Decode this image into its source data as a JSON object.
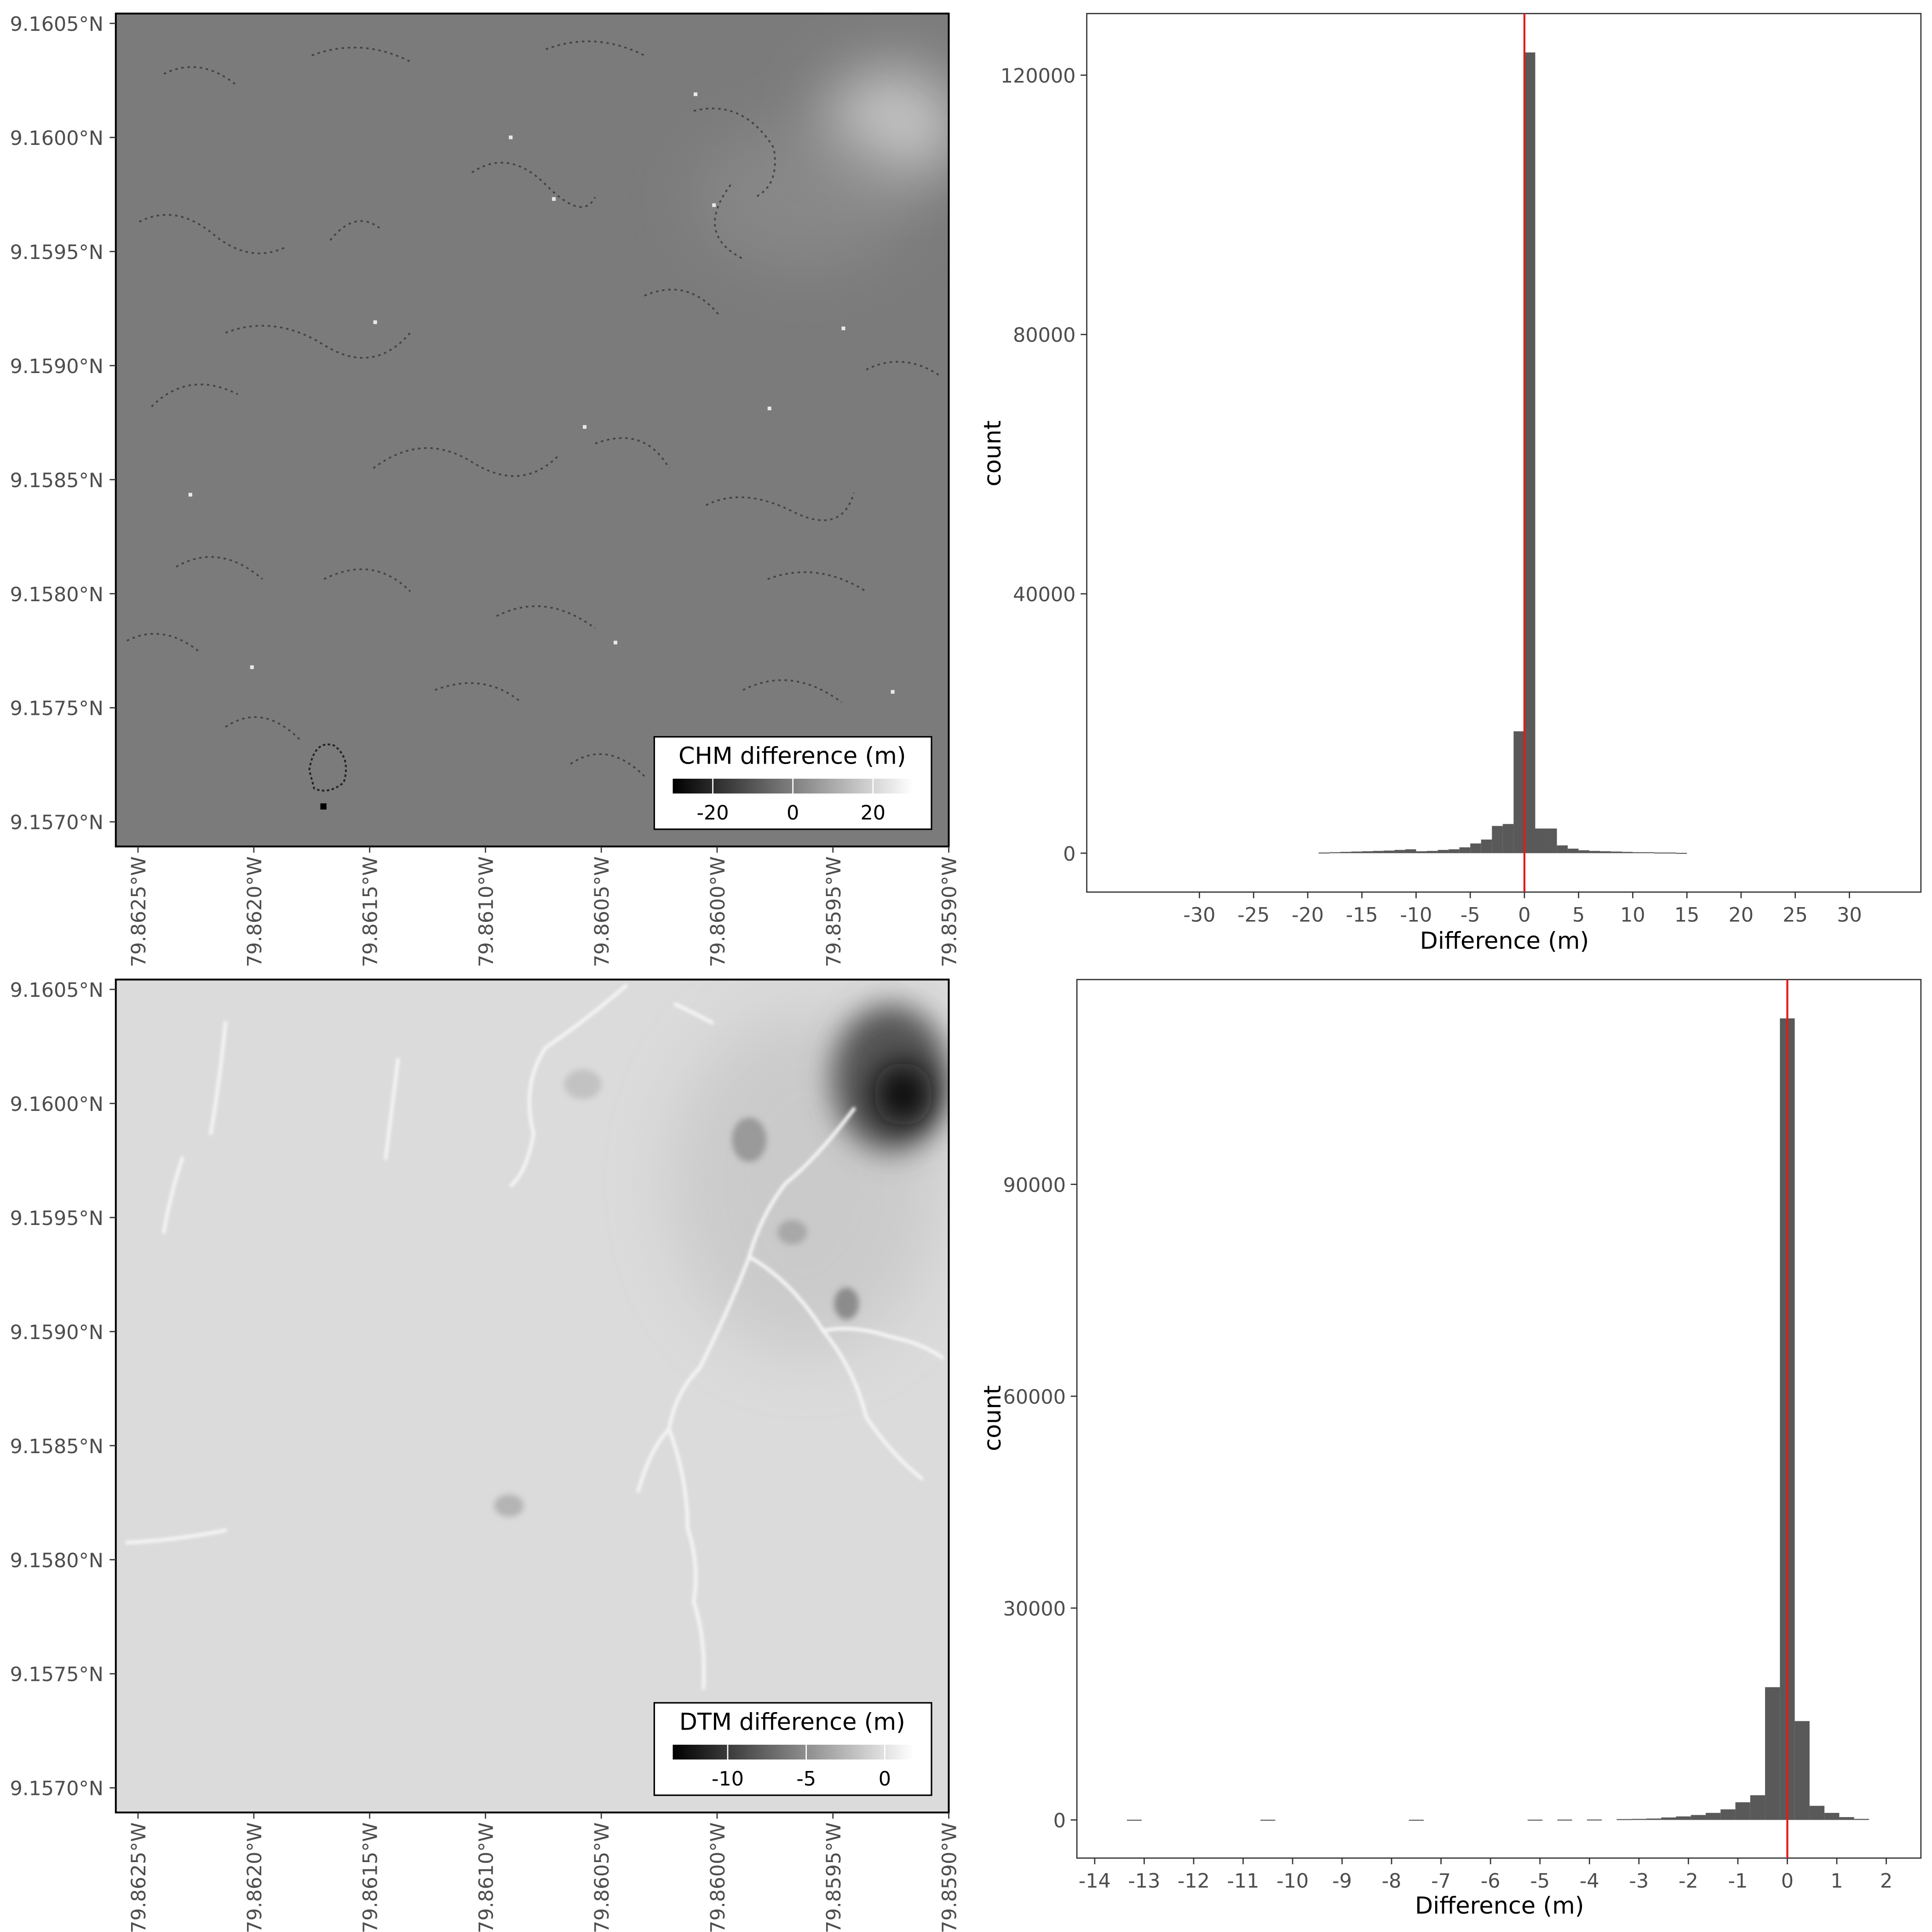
{
  "chart_data": [
    {
      "type": "heatmap",
      "legend_title": "CHM difference (m)",
      "legend_ticks": [
        "-20",
        "0",
        "20"
      ],
      "legend_range": [
        -30,
        30
      ],
      "legend_placement": "bottom-right",
      "x_ticks": [
        "79.8625°W",
        "79.8620°W",
        "79.8615°W",
        "79.8610°W",
        "79.8605°W",
        "79.8600°W",
        "79.8595°W",
        "79.8590°W"
      ],
      "y_ticks": [
        "9.1605°N",
        "9.1600°N",
        "9.1595°N",
        "9.1590°N",
        "9.1585°N",
        "9.1580°N",
        "9.1575°N",
        "9.1570°N"
      ],
      "xlim": [
        -79.86268,
        -79.85905
      ],
      "ylim": [
        9.15684,
        9.16046
      ],
      "colormap": [
        "#000000",
        "#ffffff"
      ],
      "features": [
        {
          "kind": "bright-patch",
          "lon": -79.85918,
          "lat": 9.16005,
          "value": 8
        },
        {
          "kind": "dark-pixel",
          "lon": -79.86168,
          "lat": 9.15704,
          "value": -30
        }
      ]
    },
    {
      "type": "bar",
      "xlabel": "Difference (m)",
      "ylabel": "count",
      "x_ticks": [
        -30,
        -25,
        -20,
        -15,
        -10,
        -5,
        0,
        5,
        10,
        15,
        20,
        25,
        30
      ],
      "y_ticks": [
        0,
        40000,
        80000,
        120000
      ],
      "xlim": [
        -40.4,
        36.6
      ],
      "ylim": [
        -6000,
        129500
      ],
      "bin_width": 1,
      "bins": [
        {
          "x": -18.5,
          "count": 100
        },
        {
          "x": -17.5,
          "count": 150
        },
        {
          "x": -16.5,
          "count": 200
        },
        {
          "x": -15.5,
          "count": 250
        },
        {
          "x": -14.5,
          "count": 300
        },
        {
          "x": -13.5,
          "count": 350
        },
        {
          "x": -12.5,
          "count": 400
        },
        {
          "x": -11.5,
          "count": 500
        },
        {
          "x": -10.5,
          "count": 600
        },
        {
          "x": -9.5,
          "count": 300
        },
        {
          "x": -8.5,
          "count": 350
        },
        {
          "x": -7.5,
          "count": 500
        },
        {
          "x": -6.5,
          "count": 600
        },
        {
          "x": -5.5,
          "count": 900
        },
        {
          "x": -4.5,
          "count": 1500
        },
        {
          "x": -3.5,
          "count": 2100
        },
        {
          "x": -2.5,
          "count": 4200
        },
        {
          "x": -1.5,
          "count": 4500
        },
        {
          "x": -0.5,
          "count": 18800
        },
        {
          "x": 0.5,
          "count": 123500
        },
        {
          "x": 1.5,
          "count": 3800
        },
        {
          "x": 2.5,
          "count": 3800
        },
        {
          "x": 3.5,
          "count": 1200
        },
        {
          "x": 4.5,
          "count": 700
        },
        {
          "x": 5.5,
          "count": 450
        },
        {
          "x": 6.5,
          "count": 350
        },
        {
          "x": 7.5,
          "count": 300
        },
        {
          "x": 8.5,
          "count": 250
        },
        {
          "x": 9.5,
          "count": 200
        },
        {
          "x": 10.5,
          "count": 150
        },
        {
          "x": 11.5,
          "count": 150
        },
        {
          "x": 12.5,
          "count": 100
        },
        {
          "x": 13.5,
          "count": 100
        },
        {
          "x": 14.5,
          "count": 50
        }
      ],
      "vline": {
        "x": 0,
        "color": "#e41a1c"
      },
      "bar_color": "#595959"
    },
    {
      "type": "heatmap",
      "legend_title": "DTM difference (m)",
      "legend_ticks": [
        "-10",
        "-5",
        "0"
      ],
      "legend_range": [
        -13.5,
        1.8
      ],
      "legend_placement": "bottom-right",
      "x_ticks": [
        "79.8625°W",
        "79.8620°W",
        "79.8615°W",
        "79.8610°W",
        "79.8605°W",
        "79.8600°W",
        "79.8595°W",
        "79.8590°W"
      ],
      "y_ticks": [
        "9.1605°N",
        "9.1600°N",
        "9.1595°N",
        "9.1590°N",
        "9.1585°N",
        "9.1580°N",
        "9.1575°N",
        "9.1570°N"
      ],
      "xlim": [
        -79.86268,
        -79.85905
      ],
      "ylim": [
        9.15684,
        9.16046
      ],
      "colormap": [
        "#000000",
        "#ffffff"
      ],
      "features": [
        {
          "kind": "dark-depression",
          "lon": -79.85925,
          "lat": 9.15998,
          "value": -13.5
        },
        {
          "kind": "dark-patch",
          "lon": -79.85985,
          "lat": 9.15985,
          "value": -4
        },
        {
          "kind": "dark-patch",
          "lon": -79.85945,
          "lat": 9.15885,
          "value": -3
        },
        {
          "kind": "bright-channel",
          "lon": -79.85985,
          "lat": 9.1588,
          "value": 1.5
        }
      ]
    },
    {
      "type": "bar",
      "xlabel": "Difference (m)",
      "ylabel": "count",
      "x_ticks": [
        -14,
        -13,
        -12,
        -11,
        -10,
        -9,
        -8,
        -7,
        -6,
        -5,
        -4,
        -3,
        -2,
        -1,
        0,
        1,
        2
      ],
      "y_ticks": [
        0,
        30000,
        60000,
        90000
      ],
      "xlim": [
        -14.36,
        2.7
      ],
      "ylim": [
        -5400,
        119000
      ],
      "bin_width": 0.3,
      "bins": [
        {
          "x": -13.2,
          "count": 30
        },
        {
          "x": -10.5,
          "count": 30
        },
        {
          "x": -7.5,
          "count": 30
        },
        {
          "x": -5.1,
          "count": 40
        },
        {
          "x": -4.5,
          "count": 50
        },
        {
          "x": -3.9,
          "count": 60
        },
        {
          "x": -3.3,
          "count": 120
        },
        {
          "x": -3.0,
          "count": 150
        },
        {
          "x": -2.7,
          "count": 200
        },
        {
          "x": -2.4,
          "count": 350
        },
        {
          "x": -2.1,
          "count": 500
        },
        {
          "x": -1.8,
          "count": 700
        },
        {
          "x": -1.5,
          "count": 1000
        },
        {
          "x": -1.2,
          "count": 1500
        },
        {
          "x": -0.9,
          "count": 2500
        },
        {
          "x": -0.6,
          "count": 3500
        },
        {
          "x": -0.3,
          "count": 18800
        },
        {
          "x": 0.0,
          "count": 113500
        },
        {
          "x": 0.3,
          "count": 14000
        },
        {
          "x": 0.6,
          "count": 2000
        },
        {
          "x": 0.9,
          "count": 1000
        },
        {
          "x": 1.2,
          "count": 400
        },
        {
          "x": 1.5,
          "count": 150
        }
      ],
      "vline": {
        "x": 0,
        "color": "#e41a1c"
      },
      "bar_color": "#595959"
    }
  ]
}
